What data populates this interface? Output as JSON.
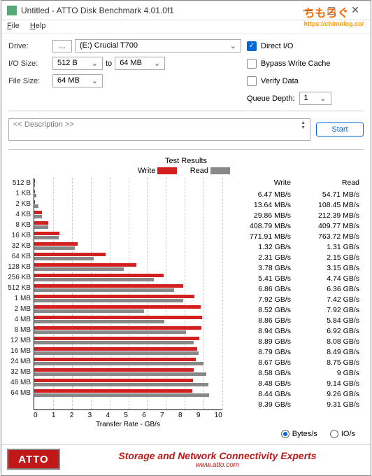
{
  "window": {
    "title": "Untitled - ATTO Disk Benchmark 4.01.0f1",
    "watermark": "ちもろぐ",
    "watermark_url": "https://chimolog.co/"
  },
  "menu": {
    "file": "File",
    "help": "Help"
  },
  "config": {
    "drive_label": "Drive:",
    "drive_btn": "...",
    "drive_value": "(E:) Crucial T700",
    "io_label": "I/O Size:",
    "io_from": "512 B",
    "io_to_label": "to",
    "io_to": "64 MB",
    "file_label": "File Size:",
    "file_value": "64 MB",
    "direct_io": "Direct I/O",
    "bypass": "Bypass Write Cache",
    "verify": "Verify Data",
    "queue_label": "Queue Depth:",
    "queue_value": "1"
  },
  "desc": {
    "label": "<< Description >>",
    "start": "Start"
  },
  "legend": {
    "title": "Test Results",
    "write": "Write",
    "read": "Read"
  },
  "chart": {
    "max_gbps": 10,
    "xticks": [
      "0",
      "1",
      "2",
      "3",
      "4",
      "5",
      "6",
      "7",
      "8",
      "9",
      "10"
    ],
    "xlabel": "Transfer Rate - GB/s",
    "colors": {
      "write": "#d21f1f",
      "read": "#888888",
      "grid": "#dddddd"
    },
    "rows": [
      {
        "label": "512 B",
        "write": "6.47 MB/s",
        "read": "54.71 MB/s",
        "w": 0.006,
        "r": 0.053
      },
      {
        "label": "1 KB",
        "write": "13.64 MB/s",
        "read": "108.45 MB/s",
        "w": 0.013,
        "r": 0.106
      },
      {
        "label": "2 KB",
        "write": "29.86 MB/s",
        "read": "212.39 MB/s",
        "w": 0.029,
        "r": 0.207
      },
      {
        "label": "4 KB",
        "write": "408.79 MB/s",
        "read": "409.77 MB/s",
        "w": 0.399,
        "r": 0.4
      },
      {
        "label": "8 KB",
        "write": "771.91 MB/s",
        "read": "763.72 MB/s",
        "w": 0.754,
        "r": 0.746
      },
      {
        "label": "16 KB",
        "write": "1.32 GB/s",
        "read": "1.31 GB/s",
        "w": 1.32,
        "r": 1.31
      },
      {
        "label": "32 KB",
        "write": "2.31 GB/s",
        "read": "2.15 GB/s",
        "w": 2.31,
        "r": 2.15
      },
      {
        "label": "64 KB",
        "write": "3.78 GB/s",
        "read": "3.15 GB/s",
        "w": 3.78,
        "r": 3.15
      },
      {
        "label": "128 KB",
        "write": "5.41 GB/s",
        "read": "4.74 GB/s",
        "w": 5.41,
        "r": 4.74
      },
      {
        "label": "256 KB",
        "write": "6.86 GB/s",
        "read": "6.36 GB/s",
        "w": 6.86,
        "r": 6.36
      },
      {
        "label": "512 KB",
        "write": "7.92 GB/s",
        "read": "7.42 GB/s",
        "w": 7.92,
        "r": 7.42
      },
      {
        "label": "1 MB",
        "write": "8.52 GB/s",
        "read": "7.92 GB/s",
        "w": 8.52,
        "r": 7.92
      },
      {
        "label": "2 MB",
        "write": "8.86 GB/s",
        "read": "5.84 GB/s",
        "w": 8.86,
        "r": 5.84
      },
      {
        "label": "4 MB",
        "write": "8.94 GB/s",
        "read": "6.92 GB/s",
        "w": 8.94,
        "r": 6.92
      },
      {
        "label": "8 MB",
        "write": "8.89 GB/s",
        "read": "8.08 GB/s",
        "w": 8.89,
        "r": 8.08
      },
      {
        "label": "12 MB",
        "write": "8.79 GB/s",
        "read": "8.49 GB/s",
        "w": 8.79,
        "r": 8.49
      },
      {
        "label": "16 MB",
        "write": "8.67 GB/s",
        "read": "8.75 GB/s",
        "w": 8.67,
        "r": 8.75
      },
      {
        "label": "24 MB",
        "write": "8.58 GB/s",
        "read": "9 GB/s",
        "w": 8.58,
        "r": 9.0
      },
      {
        "label": "32 MB",
        "write": "8.48 GB/s",
        "read": "9.14 GB/s",
        "w": 8.48,
        "r": 9.14
      },
      {
        "label": "48 MB",
        "write": "8.44 GB/s",
        "read": "9.26 GB/s",
        "w": 8.44,
        "r": 9.26
      },
      {
        "label": "64 MB",
        "write": "8.39 GB/s",
        "read": "9.31 GB/s",
        "w": 8.39,
        "r": 9.31
      }
    ]
  },
  "radios": {
    "bytes": "Bytes/s",
    "ios": "IO/s"
  },
  "footer": {
    "logo": "ATTO",
    "text": "Storage and Network Connectivity Experts",
    "url": "www.atto.com"
  }
}
